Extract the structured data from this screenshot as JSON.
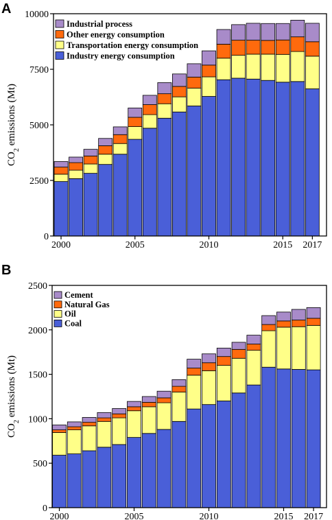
{
  "colors": {
    "blue": "#4a5fd8",
    "yellow": "#ffff88",
    "orange": "#ff6a0d",
    "purple": "#a88bc9"
  },
  "chart_data": [
    {
      "panel": "A",
      "type": "bar",
      "stacked": true,
      "title": "",
      "xlabel": "",
      "ylabel": "CO2 emissions (Mt)",
      "ylabel_main": "CO",
      "ylabel_sub": "2",
      "ylabel_rest": " emissions (Mt)",
      "ylim": [
        0,
        10000
      ],
      "yticks": [
        0,
        2500,
        5000,
        7500,
        10000
      ],
      "x": [
        2000,
        2001,
        2002,
        2003,
        2004,
        2005,
        2006,
        2007,
        2008,
        2009,
        2010,
        2011,
        2012,
        2013,
        2014,
        2015,
        2016,
        2017
      ],
      "xticks": [
        "2000",
        "2005",
        "2010",
        "2015",
        "2017"
      ],
      "xtick_years": [
        2000,
        2005,
        2010,
        2015,
        2017
      ],
      "legend_position": "top-left",
      "grid": false,
      "series": [
        {
          "name": "Industry energy consumption",
          "color": "#4a5fd8",
          "values": [
            2450,
            2580,
            2820,
            3220,
            3680,
            4350,
            4850,
            5300,
            5580,
            5850,
            6280,
            7030,
            7100,
            7060,
            7000,
            6920,
            6950,
            6620
          ]
        },
        {
          "name": "Transportation energy consumption",
          "color": "#ffff88",
          "values": [
            330,
            380,
            420,
            460,
            480,
            570,
            610,
            650,
            680,
            800,
            880,
            970,
            1030,
            1120,
            1180,
            1250,
            1350,
            1470
          ]
        },
        {
          "name": "Other energy consumption",
          "color": "#ff6a0d",
          "values": [
            320,
            340,
            360,
            380,
            400,
            420,
            450,
            450,
            470,
            500,
            530,
            630,
            680,
            630,
            620,
            650,
            660,
            650
          ]
        },
        {
          "name": "Industrial process",
          "color": "#a88bc9",
          "values": [
            250,
            250,
            300,
            330,
            350,
            420,
            420,
            500,
            560,
            600,
            640,
            660,
            700,
            760,
            760,
            740,
            750,
            830
          ]
        }
      ]
    },
    {
      "panel": "B",
      "type": "bar",
      "stacked": true,
      "title": "",
      "xlabel": "",
      "ylabel": "CO2 emissions (Mt)",
      "ylabel_main": "CO",
      "ylabel_sub": "2",
      "ylabel_rest": " emissions (Mt)",
      "ylim": [
        0,
        2500
      ],
      "yticks": [
        0,
        500,
        1000,
        1500,
        2000,
        2500
      ],
      "x": [
        2000,
        2001,
        2002,
        2003,
        2004,
        2005,
        2006,
        2007,
        2008,
        2009,
        2010,
        2011,
        2012,
        2013,
        2014,
        2015,
        2016,
        2017
      ],
      "xticks": [
        "2000",
        "2005",
        "2010",
        "2015",
        "2017"
      ],
      "xtick_years": [
        2000,
        2005,
        2010,
        2015,
        2017
      ],
      "legend_position": "top-left",
      "grid": false,
      "series": [
        {
          "name": "Coal",
          "color": "#4a5fd8",
          "values": [
            590,
            605,
            640,
            680,
            710,
            790,
            835,
            880,
            970,
            1110,
            1160,
            1200,
            1290,
            1380,
            1580,
            1560,
            1555,
            1550
          ]
        },
        {
          "name": "Oil",
          "color": "#ffff88",
          "values": [
            255,
            270,
            280,
            290,
            300,
            300,
            300,
            300,
            330,
            380,
            380,
            400,
            390,
            390,
            410,
            470,
            480,
            500
          ]
        },
        {
          "name": "Natural Gas",
          "color": "#ff6a0d",
          "values": [
            30,
            35,
            40,
            40,
            45,
            45,
            50,
            55,
            65,
            80,
            90,
            100,
            100,
            70,
            70,
            70,
            75,
            80
          ]
        },
        {
          "name": "Cement",
          "color": "#a88bc9",
          "values": [
            55,
            55,
            55,
            60,
            60,
            60,
            65,
            75,
            75,
            100,
            100,
            95,
            80,
            100,
            100,
            100,
            120,
            120
          ]
        }
      ]
    }
  ]
}
